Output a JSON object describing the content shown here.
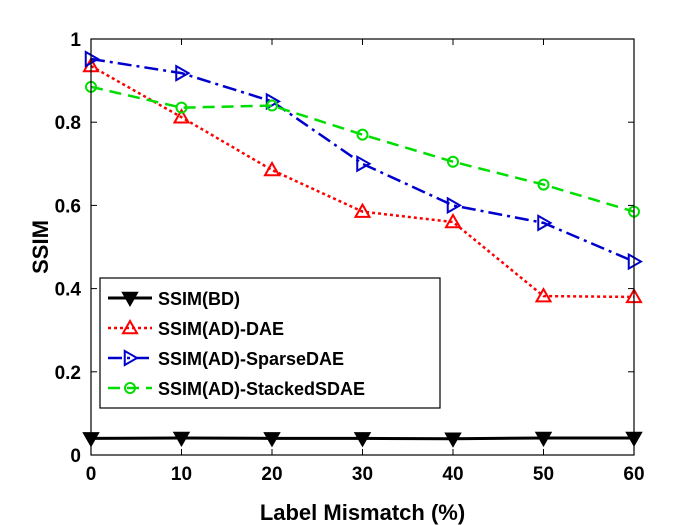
{
  "chart_data": {
    "type": "line",
    "xlabel": "Label Mismatch (%)",
    "ylabel": "SSIM",
    "xlim": [
      0,
      60
    ],
    "ylim": [
      0,
      1
    ],
    "x_ticks": [
      0,
      10,
      20,
      30,
      40,
      50,
      60
    ],
    "y_ticks": [
      0,
      0.2,
      0.4,
      0.6,
      0.8,
      1
    ],
    "y_tick_labels": [
      "0",
      "0.2",
      "0.4",
      "0.6",
      "0.8",
      "1"
    ],
    "grid": false,
    "legend_position": "bottom-left",
    "x": [
      0,
      10,
      20,
      30,
      40,
      50,
      60
    ],
    "series": [
      {
        "name": "SSIM(BD)",
        "values": [
          0.04,
          0.041,
          0.04,
          0.04,
          0.039,
          0.041,
          0.041
        ],
        "color": "#000000",
        "line_style": "solid",
        "marker": "triangle-down"
      },
      {
        "name": "SSIM(AD)-DAE",
        "values": [
          0.935,
          0.812,
          0.685,
          0.585,
          0.56,
          0.382,
          0.38
        ],
        "color": "#ff0000",
        "line_style": "dotted",
        "marker": "triangle-up"
      },
      {
        "name": "SSIM(AD)-SparseDAE",
        "values": [
          0.952,
          0.918,
          0.85,
          0.7,
          0.6,
          0.558,
          0.465
        ],
        "color": "#0000cc",
        "line_style": "dashdot",
        "marker": "triangle-right"
      },
      {
        "name": "SSIM(AD)-StackedSDAE",
        "values": [
          0.885,
          0.835,
          0.84,
          0.77,
          0.705,
          0.65,
          0.585
        ],
        "color": "#00dd00",
        "line_style": "dashed",
        "marker": "circle"
      }
    ]
  }
}
